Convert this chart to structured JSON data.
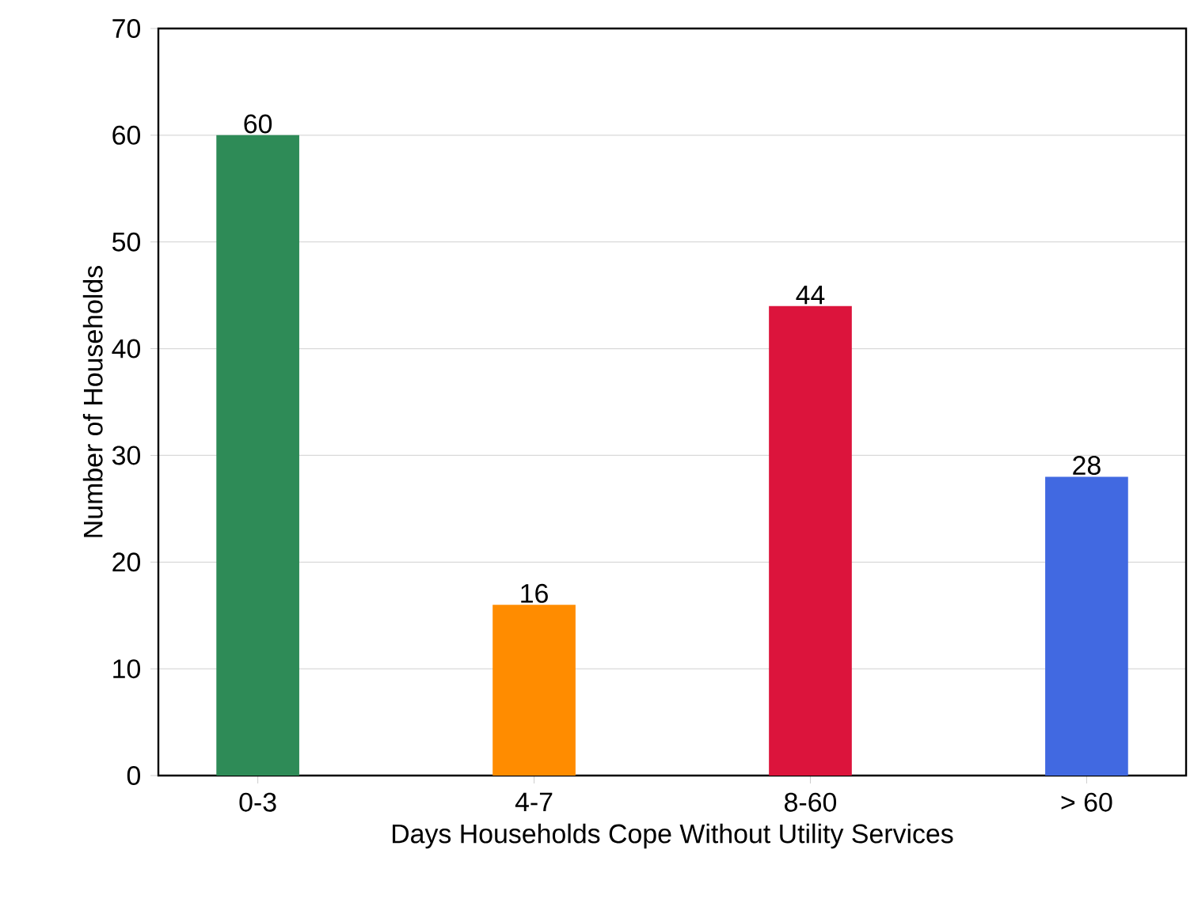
{
  "chart_data": {
    "type": "bar",
    "xlabel": "Days Households Cope Without Utility Services",
    "ylabel": "Number of Households",
    "categories": [
      "0-3",
      "4-7",
      "8-60",
      "> 60"
    ],
    "values": [
      60,
      16,
      44,
      28
    ],
    "colors": [
      "#2e8b57",
      "#ff8c00",
      "#dc143c",
      "#4169e1"
    ],
    "ylim": [
      0,
      70
    ],
    "yticks": [
      0,
      10,
      20,
      30,
      40,
      50,
      60,
      70
    ],
    "grid": "y",
    "data_labels": true
  }
}
